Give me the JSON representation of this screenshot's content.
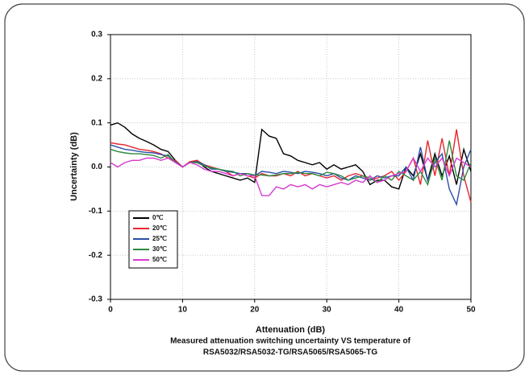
{
  "chart_data": {
    "type": "line",
    "x_label": "Attenuation (dB)",
    "y_label": "Uncertainty (dB)",
    "caption": [
      "Measured attenuation switching uncertainty VS temperature of",
      "RSA5032/RSA5032-TG/RSA5065/RSA5065-TG"
    ],
    "x": [
      0,
      1,
      2,
      3,
      4,
      5,
      6,
      7,
      8,
      9,
      10,
      11,
      12,
      13,
      14,
      15,
      16,
      17,
      18,
      19,
      20,
      21,
      22,
      23,
      24,
      25,
      26,
      27,
      28,
      29,
      30,
      31,
      32,
      33,
      34,
      35,
      36,
      37,
      38,
      39,
      40,
      41,
      42,
      43,
      44,
      45,
      46,
      47,
      48,
      49,
      50
    ],
    "xlim": [
      0,
      50
    ],
    "xticks": [
      0,
      10,
      20,
      30,
      40,
      50
    ],
    "ylim": [
      -0.3,
      0.3
    ],
    "yticks": [
      -0.3,
      -0.2,
      -0.1,
      {
        "value": 0,
        "label": "0.0"
      },
      0.1,
      0.2,
      0.3
    ],
    "grid": true,
    "legend": "lower-left",
    "series": [
      {
        "name": "0℃",
        "color": "#000000",
        "values": [
          0.095,
          0.1,
          0.09,
          0.075,
          0.065,
          0.058,
          0.05,
          0.04,
          0.035,
          0.015,
          0.0,
          0.01,
          0.015,
          0.0,
          -0.01,
          -0.015,
          -0.02,
          -0.025,
          -0.03,
          -0.025,
          -0.035,
          0.085,
          0.07,
          0.065,
          0.03,
          0.025,
          0.015,
          0.01,
          0.005,
          0.01,
          -0.005,
          0.005,
          -0.005,
          0.0,
          0.005,
          -0.01,
          -0.04,
          -0.03,
          -0.03,
          -0.045,
          -0.05,
          0.0,
          -0.02,
          0.03,
          -0.03,
          0.03,
          -0.02,
          0.025,
          -0.04,
          0.04,
          -0.01
        ]
      },
      {
        "name": "20℃",
        "color": "#e8262b",
        "values": [
          0.055,
          0.052,
          0.05,
          0.045,
          0.04,
          0.038,
          0.035,
          0.03,
          0.02,
          0.015,
          0.0,
          0.012,
          0.015,
          0.005,
          0.0,
          -0.005,
          -0.01,
          -0.02,
          -0.015,
          -0.02,
          -0.025,
          -0.015,
          -0.02,
          -0.02,
          -0.015,
          -0.02,
          -0.01,
          -0.02,
          -0.015,
          -0.02,
          -0.025,
          -0.02,
          -0.03,
          -0.02,
          -0.015,
          -0.02,
          -0.03,
          -0.025,
          -0.02,
          -0.01,
          -0.03,
          -0.01,
          0.02,
          -0.04,
          0.06,
          -0.02,
          0.065,
          -0.02,
          0.085,
          -0.02,
          -0.08
        ]
      },
      {
        "name": "25℃",
        "color": "#2b4fa8",
        "values": [
          0.05,
          0.045,
          0.04,
          0.038,
          0.035,
          0.033,
          0.032,
          0.028,
          0.025,
          0.012,
          0.0,
          0.01,
          0.012,
          0.005,
          -0.005,
          -0.005,
          -0.01,
          -0.012,
          -0.015,
          -0.015,
          -0.02,
          -0.01,
          -0.012,
          -0.015,
          -0.01,
          -0.012,
          -0.015,
          -0.01,
          -0.012,
          -0.015,
          -0.02,
          -0.015,
          -0.025,
          -0.03,
          -0.02,
          -0.025,
          -0.03,
          -0.02,
          -0.025,
          -0.02,
          -0.02,
          0.0,
          -0.03,
          0.045,
          -0.03,
          0.01,
          0.03,
          -0.05,
          -0.085,
          0.0,
          0.04
        ]
      },
      {
        "name": "30℃",
        "color": "#2b8a3e",
        "values": [
          0.04,
          0.035,
          0.032,
          0.03,
          0.03,
          0.028,
          0.026,
          0.02,
          0.028,
          0.01,
          0.0,
          0.01,
          0.01,
          0.002,
          -0.002,
          -0.005,
          -0.008,
          -0.01,
          -0.02,
          -0.015,
          -0.018,
          -0.018,
          -0.02,
          -0.018,
          -0.015,
          -0.015,
          -0.012,
          -0.015,
          -0.015,
          -0.02,
          -0.012,
          -0.015,
          -0.02,
          -0.03,
          -0.025,
          -0.02,
          -0.025,
          -0.035,
          -0.02,
          -0.03,
          -0.01,
          -0.02,
          -0.03,
          -0.01,
          -0.04,
          0.02,
          -0.03,
          0.06,
          -0.02,
          -0.03,
          0.01
        ]
      },
      {
        "name": "50℃",
        "color": "#d63ad0",
        "values": [
          0.01,
          0.0,
          0.01,
          0.015,
          0.015,
          0.02,
          0.02,
          0.015,
          0.02,
          0.01,
          0.0,
          0.01,
          0.005,
          -0.005,
          -0.01,
          -0.01,
          -0.015,
          -0.02,
          -0.015,
          -0.02,
          -0.02,
          -0.065,
          -0.065,
          -0.045,
          -0.05,
          -0.04,
          -0.045,
          -0.04,
          -0.05,
          -0.04,
          -0.045,
          -0.04,
          -0.035,
          -0.04,
          -0.03,
          -0.035,
          -0.02,
          -0.035,
          -0.03,
          -0.02,
          -0.015,
          -0.01,
          0.02,
          -0.01,
          0.02,
          0.0,
          0.02,
          -0.02,
          0.02,
          0.01,
          0.0
        ]
      }
    ]
  }
}
